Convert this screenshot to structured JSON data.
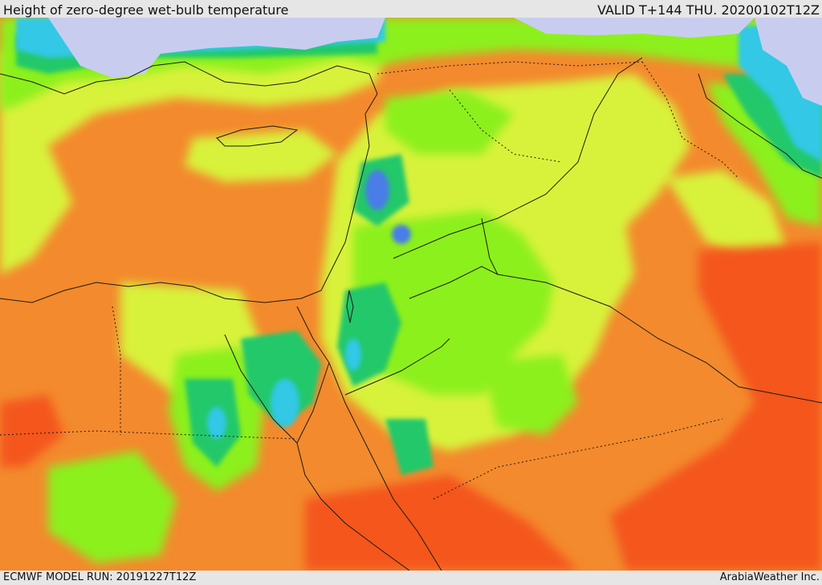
{
  "header": {
    "title": "Height of zero-degree wet-bulb temperature",
    "valid": "VALID T+144 THU. 20200102T12Z"
  },
  "footer": {
    "model_run": "ECMWF MODEL RUN: 20191227T12Z",
    "credit": "ArabiaWeather Inc."
  },
  "map": {
    "variable": "zero-degree wet-bulb height",
    "colors": {
      "very_low": "#c8cdf0",
      "low_blue": "#4a7de8",
      "cyan": "#32c8e6",
      "green": "#21c86a",
      "lime": "#8cf01e",
      "yellow": "#d8f23a",
      "orange": "#f38a2d",
      "red_orange": "#f4561c",
      "border": "#1a1a1a"
    }
  }
}
